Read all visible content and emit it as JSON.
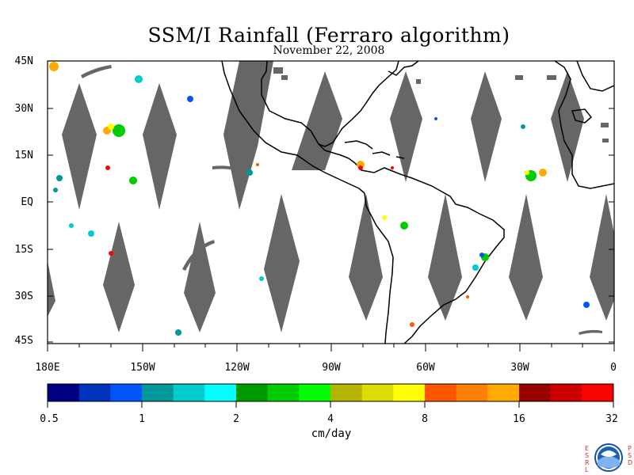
{
  "header": {
    "title": "SSM/I Rainfall (Ferraro algorithm)",
    "date": "November 22, 2008"
  },
  "map": {
    "lat_labels": [
      "45N",
      "30N",
      "15N",
      "EQ",
      "15S",
      "30S",
      "45S"
    ],
    "lon_labels": [
      "180E",
      "150W",
      "120W",
      "90W",
      "60W",
      "30W",
      "0"
    ],
    "colors": {
      "no_data_swath": "#666666",
      "coastline": "#000000",
      "background": "#ffffff"
    }
  },
  "colorbar": {
    "units": "cm/day",
    "tick_labels": [
      "0.5",
      "1",
      "2",
      "4",
      "8",
      "16",
      "32"
    ],
    "colors": [
      "#000080",
      "#0033bb",
      "#0055ff",
      "#009999",
      "#00cccc",
      "#00ffff",
      "#009900",
      "#00cc00",
      "#00ff00",
      "#b3b300",
      "#dddd00",
      "#ffff00",
      "#ff5500",
      "#ff8000",
      "#ffaa00",
      "#990000",
      "#cc0000",
      "#ff0000"
    ]
  },
  "logo": {
    "left_letters": "ESRL",
    "right_letters": "PSD",
    "emblem": "NOAA"
  }
}
